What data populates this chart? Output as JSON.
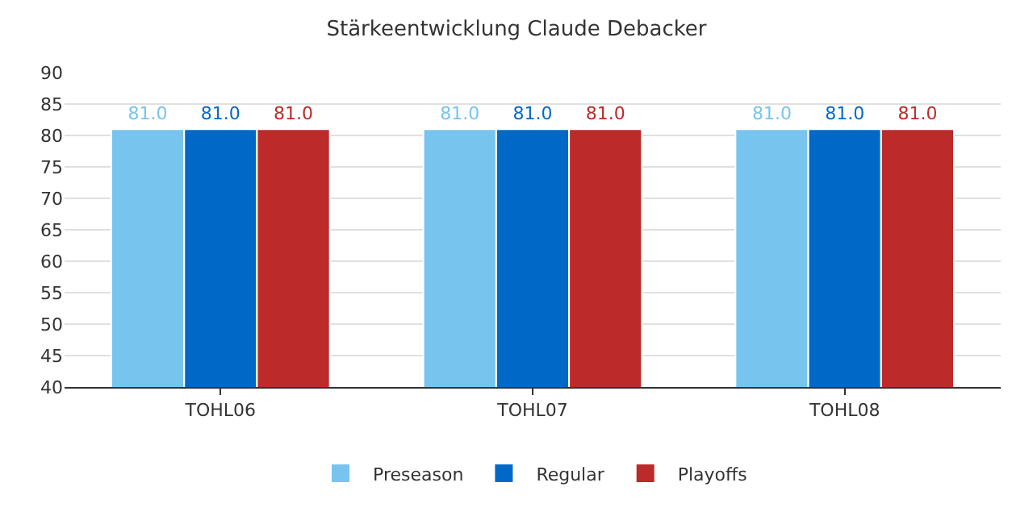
{
  "chart_data": {
    "type": "bar",
    "title": "Stärkeentwicklung Claude Debacker",
    "categories": [
      "TOHL06",
      "TOHL07",
      "TOHL08"
    ],
    "series": [
      {
        "name": "Preseason",
        "color": "#77c4ee",
        "values": [
          81.0,
          81.0,
          81.0
        ],
        "value_labels": [
          "81.0",
          "81.0",
          "81.0"
        ]
      },
      {
        "name": "Regular",
        "color": "#0069c8",
        "values": [
          81.0,
          81.0,
          81.0
        ],
        "value_labels": [
          "81.0",
          "81.0",
          "81.0"
        ]
      },
      {
        "name": "Playoffs",
        "color": "#bd2a2a",
        "values": [
          81.0,
          81.0,
          81.0
        ],
        "value_labels": [
          "81.0",
          "81.0",
          "81.0"
        ]
      }
    ],
    "ylim": [
      40,
      90
    ],
    "yticks": [
      40,
      45,
      50,
      55,
      60,
      65,
      70,
      75,
      80,
      85,
      90
    ],
    "grid": "y",
    "legend": "bottom"
  }
}
